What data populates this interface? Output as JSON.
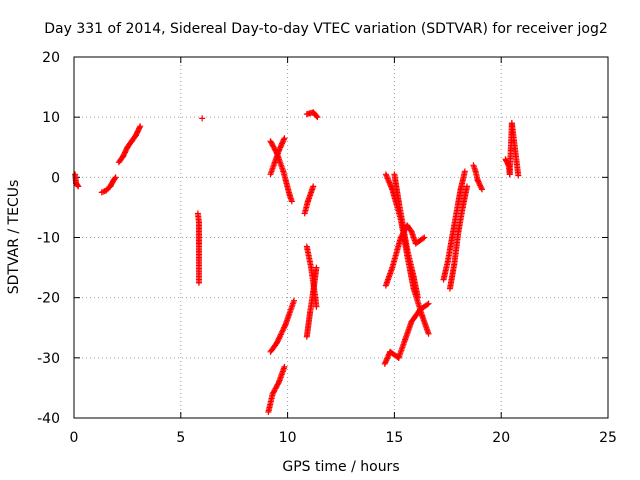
{
  "chart_data": {
    "type": "scatter",
    "title": "Day 331 of 2014, Sidereal Day-to-day VTEC variation (SDTVAR) for receiver jog2",
    "xlabel": "GPS time / hours",
    "ylabel": "SDTVAR / TECUs",
    "xlim": [
      0,
      25
    ],
    "ylim": [
      -40,
      20
    ],
    "xticks": [
      0,
      5,
      10,
      15,
      20,
      25
    ],
    "yticks": [
      -40,
      -30,
      -20,
      -10,
      0,
      10,
      20
    ],
    "grid": true,
    "marker": "+",
    "color": "#ff0000",
    "segments": [
      {
        "name": "arc-1",
        "points": [
          [
            0.05,
            0.5
          ],
          [
            0.1,
            -1.0
          ],
          [
            0.2,
            -1.5
          ]
        ]
      },
      {
        "name": "arc-2",
        "points": [
          [
            1.3,
            -2.5
          ],
          [
            1.5,
            -2.2
          ],
          [
            1.7,
            -1.5
          ],
          [
            1.85,
            -0.5
          ],
          [
            1.95,
            0.0
          ]
        ]
      },
      {
        "name": "arc-3",
        "points": [
          [
            2.1,
            2.5
          ],
          [
            2.3,
            3.5
          ],
          [
            2.5,
            5.0
          ],
          [
            2.7,
            6.0
          ],
          [
            2.9,
            7.0
          ],
          [
            3.1,
            8.5
          ]
        ]
      },
      {
        "name": "arc-4",
        "points": [
          [
            5.8,
            -6.0
          ],
          [
            5.85,
            -7.5
          ],
          [
            5.85,
            -11.0
          ],
          [
            5.85,
            -17.5
          ],
          [
            6.0,
            9.8
          ]
        ]
      },
      {
        "name": "arc-5",
        "points": [
          [
            9.2,
            6.0
          ],
          [
            9.5,
            4.0
          ],
          [
            9.8,
            1.0
          ],
          [
            10.1,
            -3.0
          ],
          [
            10.2,
            -4.0
          ]
        ]
      },
      {
        "name": "arc-6",
        "points": [
          [
            9.2,
            0.5
          ],
          [
            9.4,
            2.5
          ],
          [
            9.6,
            4.5
          ],
          [
            9.85,
            6.5
          ]
        ]
      },
      {
        "name": "arc-7",
        "points": [
          [
            9.1,
            -39.0
          ],
          [
            9.3,
            -36.0
          ],
          [
            9.6,
            -34.0
          ],
          [
            9.85,
            -31.5
          ]
        ]
      },
      {
        "name": "arc-8",
        "points": [
          [
            9.2,
            -29.0
          ],
          [
            9.5,
            -27.5
          ],
          [
            9.9,
            -24.5
          ],
          [
            10.3,
            -20.5
          ]
        ]
      },
      {
        "name": "arc-9",
        "points": [
          [
            10.9,
            10.5
          ],
          [
            11.2,
            10.8
          ],
          [
            11.4,
            10.0
          ]
        ]
      },
      {
        "name": "arc-10",
        "points": [
          [
            10.8,
            -6.0
          ],
          [
            10.95,
            -4.0
          ],
          [
            11.2,
            -1.5
          ]
        ]
      },
      {
        "name": "arc-11",
        "points": [
          [
            10.9,
            -11.5
          ],
          [
            11.1,
            -15.0
          ],
          [
            11.3,
            -20.0
          ],
          [
            11.35,
            -21.5
          ]
        ]
      },
      {
        "name": "arc-12",
        "points": [
          [
            10.9,
            -26.5
          ],
          [
            11.05,
            -22.5
          ],
          [
            11.2,
            -19.0
          ],
          [
            11.35,
            -15.0
          ]
        ]
      },
      {
        "name": "arc-13",
        "points": [
          [
            14.6,
            0.5
          ],
          [
            14.9,
            -2.0
          ],
          [
            15.3,
            -7.0
          ],
          [
            15.6,
            -13.0
          ],
          [
            15.9,
            -18.5
          ],
          [
            16.3,
            -23.0
          ],
          [
            16.6,
            -26.0
          ]
        ]
      },
      {
        "name": "arc-14",
        "points": [
          [
            14.6,
            -18.0
          ],
          [
            14.9,
            -15.0
          ],
          [
            15.3,
            -10.0
          ],
          [
            15.6,
            -8.0
          ],
          [
            15.8,
            -9.0
          ],
          [
            16.0,
            -11.0
          ],
          [
            16.4,
            -10.0
          ]
        ]
      },
      {
        "name": "arc-15",
        "points": [
          [
            14.55,
            -31.0
          ],
          [
            14.8,
            -29.0
          ],
          [
            15.2,
            -30.0
          ],
          [
            15.5,
            -27.0
          ],
          [
            15.8,
            -24.0
          ],
          [
            16.2,
            -22.0
          ],
          [
            16.6,
            -21.0
          ]
        ]
      },
      {
        "name": "arc-16",
        "points": [
          [
            15.0,
            0.5
          ],
          [
            15.2,
            -4.0
          ],
          [
            15.4,
            -8.0
          ],
          [
            15.6,
            -12.0
          ],
          [
            15.9,
            -16.5
          ],
          [
            16.1,
            -20.0
          ]
        ]
      },
      {
        "name": "arc-17",
        "points": [
          [
            17.3,
            -17.0
          ],
          [
            17.5,
            -14.0
          ],
          [
            17.7,
            -10.0
          ],
          [
            17.9,
            -6.0
          ],
          [
            18.1,
            -2.0
          ],
          [
            18.3,
            1.0
          ]
        ]
      },
      {
        "name": "arc-18",
        "points": [
          [
            17.6,
            -18.5
          ],
          [
            17.8,
            -14.5
          ],
          [
            18.0,
            -9.0
          ],
          [
            18.2,
            -5.0
          ],
          [
            18.4,
            -1.5
          ]
        ]
      },
      {
        "name": "arc-19",
        "points": [
          [
            18.7,
            2.0
          ],
          [
            18.8,
            1.0
          ],
          [
            18.9,
            -0.5
          ],
          [
            19.1,
            -2.0
          ]
        ]
      },
      {
        "name": "arc-20",
        "points": [
          [
            20.2,
            3.0
          ],
          [
            20.35,
            2.0
          ],
          [
            20.4,
            0.5
          ],
          [
            20.5,
            9.0
          ],
          [
            20.8,
            0.3
          ]
        ]
      }
    ]
  }
}
